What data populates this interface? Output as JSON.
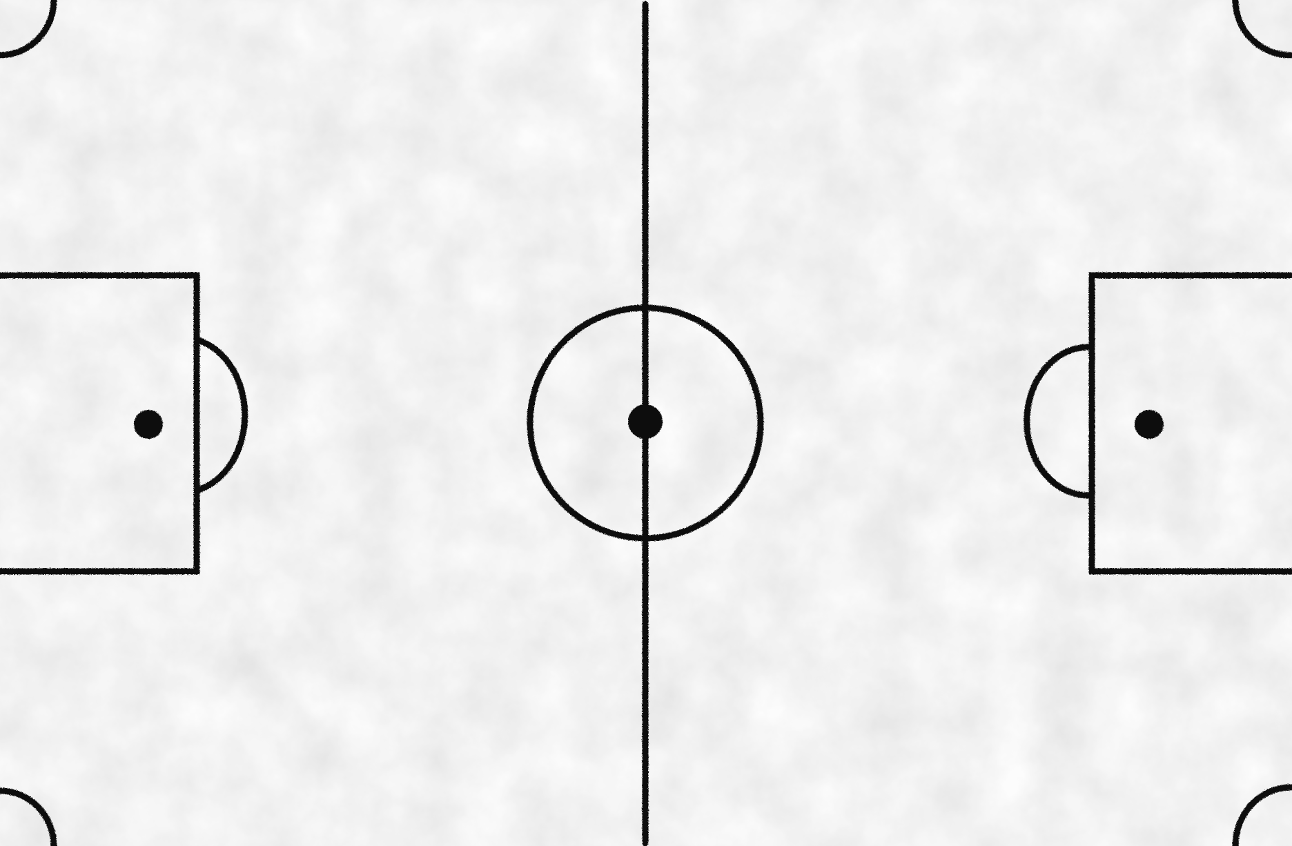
{
  "colors": {
    "paper": "#f1f1f1",
    "paper_shade": "#dcdcdc",
    "chalk": "#111111"
  }
}
